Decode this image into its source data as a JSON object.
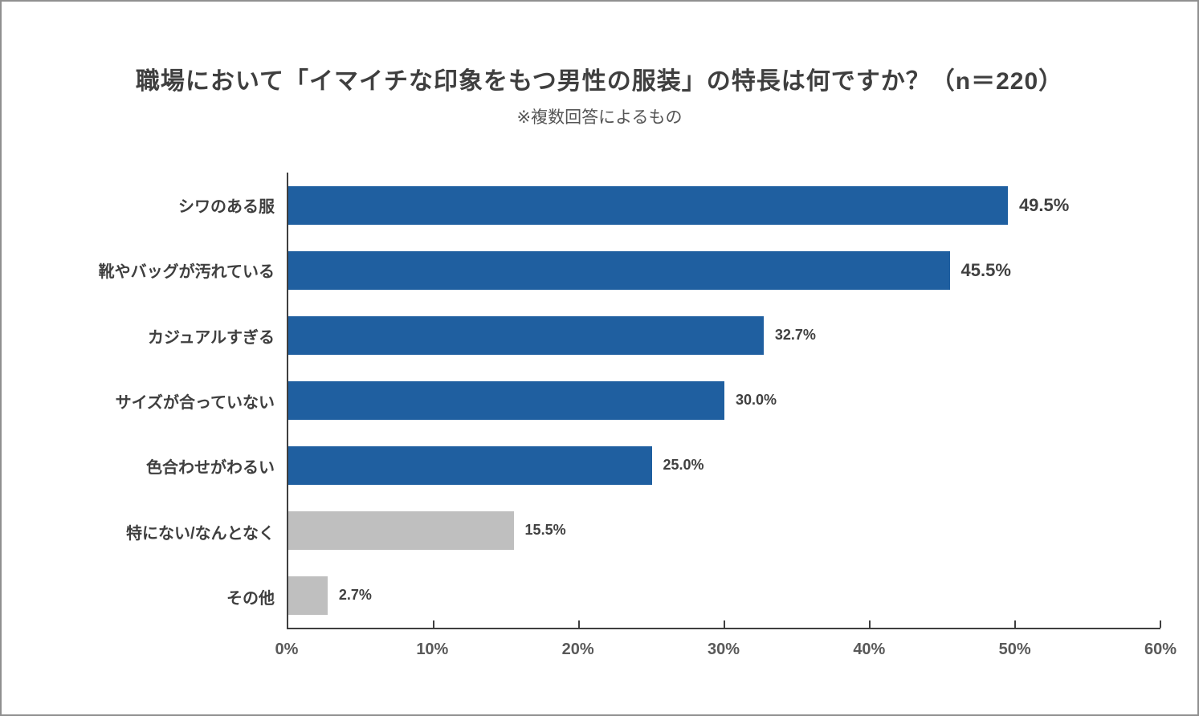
{
  "chart_data": {
    "type": "bar",
    "orientation": "horizontal",
    "title": "職場において「イマイチな印象をもつ男性の服装」の特長は何ですか？（n＝220）",
    "subtitle": "※複数回答によるもの",
    "categories": [
      "シワのある服",
      "靴やバッグが汚れている",
      "カジュアルすぎる",
      "サイズが合っていない",
      "色合わせがわるい",
      "特にない/なんとなく",
      "その他"
    ],
    "values": [
      49.5,
      45.5,
      32.7,
      30.0,
      25.0,
      15.5,
      2.7
    ],
    "value_labels": [
      "49.5%",
      "45.5%",
      "32.7%",
      "30.0%",
      "25.0%",
      "15.5%",
      "2.7%"
    ],
    "bar_styles": [
      "primary",
      "primary",
      "primary",
      "primary",
      "primary",
      "muted",
      "muted"
    ],
    "label_emphasis": [
      true,
      true,
      false,
      false,
      false,
      false,
      false
    ],
    "xlabel": "",
    "ylabel": "",
    "xlim": [
      0,
      60
    ],
    "x_ticks": [
      {
        "value": 0,
        "label": "0%"
      },
      {
        "value": 10,
        "label": "10%"
      },
      {
        "value": 20,
        "label": "20%"
      },
      {
        "value": 30,
        "label": "30%"
      },
      {
        "value": 40,
        "label": "40%"
      },
      {
        "value": 50,
        "label": "50%"
      },
      {
        "value": 60,
        "label": "60%"
      }
    ],
    "grid": false,
    "legend": false,
    "colors": {
      "primary_bar": "#1F5FA0",
      "muted_bar": "#BFBFBF",
      "title_text": "#3F3F3F",
      "axis_line": "#3F3F3F",
      "tick_label": "#595959"
    }
  }
}
